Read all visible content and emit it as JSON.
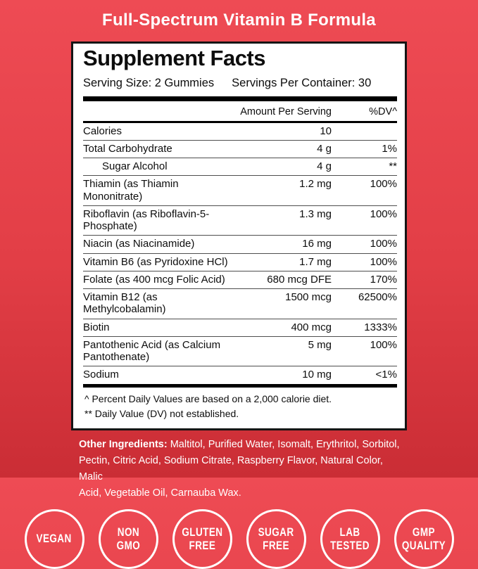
{
  "header": {
    "title": "Full-Spectrum Vitamin B Formula"
  },
  "panel": {
    "title": "Supplement Facts",
    "serving_size": "Serving Size: 2 Gummies",
    "servings_per_container": "Servings Per Container: 30",
    "columns": {
      "amount": "Amount Per Serving",
      "dv": "%DV^"
    },
    "rows": [
      {
        "name": "Calories",
        "amount": "10",
        "dv": "",
        "indent": false
      },
      {
        "name": "Total Carbohydrate",
        "amount": "4 g",
        "dv": "1%",
        "indent": false
      },
      {
        "name": "Sugar Alcohol",
        "amount": "4 g",
        "dv": "**",
        "indent": true
      },
      {
        "name": "Thiamin (as Thiamin Mononitrate)",
        "amount": "1.2 mg",
        "dv": "100%",
        "indent": false
      },
      {
        "name": "Riboflavin (as Riboflavin-5-Phosphate)",
        "amount": "1.3 mg",
        "dv": "100%",
        "indent": false
      },
      {
        "name": "Niacin (as Niacinamide)",
        "amount": "16 mg",
        "dv": "100%",
        "indent": false
      },
      {
        "name": "Vitamin B6 (as Pyridoxine HCl)",
        "amount": "1.7 mg",
        "dv": "100%",
        "indent": false
      },
      {
        "name": "Folate (as 400 mcg Folic Acid)",
        "amount": "680 mcg DFE",
        "dv": "170%",
        "indent": false
      },
      {
        "name": "Vitamin B12 (as Methylcobalamin)",
        "amount": "1500 mcg",
        "dv": "62500%",
        "indent": false
      },
      {
        "name": "Biotin",
        "amount": "400 mcg",
        "dv": "1333%",
        "indent": false
      },
      {
        "name": "Pantothenic Acid (as Calcium Pantothenate)",
        "amount": "5 mg",
        "dv": "100%",
        "indent": false
      },
      {
        "name": "Sodium",
        "amount": "10 mg",
        "dv": "<1%",
        "indent": false
      }
    ],
    "footnotes": [
      {
        "marker": "^",
        "text": "Percent Daily Values are based on a 2,000 calorie diet."
      },
      {
        "marker": "**",
        "text": "Daily Value (DV) not established."
      }
    ]
  },
  "other_ingredients": {
    "label": "Other Ingredients:",
    "lines": [
      " Maltitol, Purified Water, Isomalt, Erythritol, Sorbitol,",
      "Pectin, Citric Acid, Sodium Citrate, Raspberry Flavor, Natural Color, Malic",
      "Acid, Vegetable Oil, Carnauba Wax."
    ]
  },
  "badges": [
    {
      "label": "VEGAN"
    },
    {
      "label": "NON GMO"
    },
    {
      "label": "GLUTEN FREE"
    },
    {
      "label": "SUGAR FREE"
    },
    {
      "label": "LAB TESTED"
    },
    {
      "label": "GMP QUALITY"
    }
  ],
  "colors": {
    "background_top": "#ee4b54",
    "background_bottom": "#ca2d35",
    "panel_background": "#ffffff",
    "panel_border": "#151515",
    "text": "#0d0d0d",
    "accent_text": "#ffffff"
  }
}
